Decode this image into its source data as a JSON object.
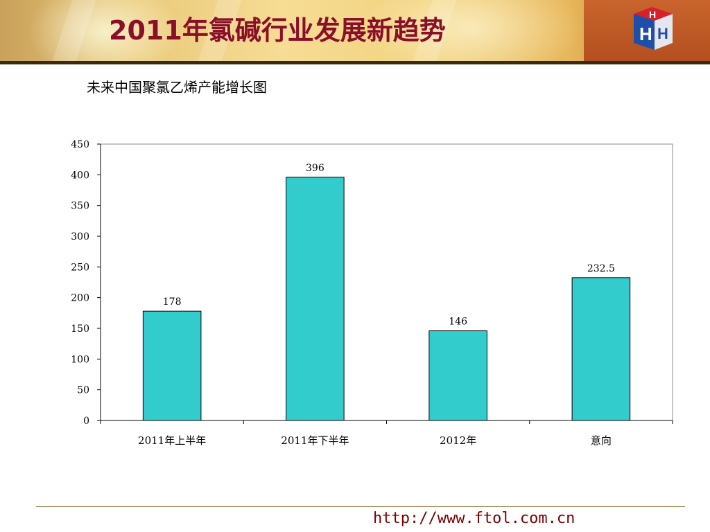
{
  "header": {
    "title": "2011年氯碱行业发展新趋势",
    "title_color": "#8a0f2a",
    "logo": "hh-cube-logo"
  },
  "chart_data": {
    "type": "bar",
    "title": "未来中国聚氯乙烯产能增长图",
    "categories": [
      "2011年上半年",
      "2011年下半年",
      "2012年",
      "意向"
    ],
    "values": [
      178,
      396,
      146,
      232.5
    ],
    "value_labels": [
      "178",
      "396",
      "146",
      "232.5"
    ],
    "ylim": [
      0,
      450
    ],
    "yticks": [
      0,
      50,
      100,
      150,
      200,
      250,
      300,
      350,
      400,
      450
    ],
    "xlabel": "",
    "ylabel": "",
    "grid": false,
    "bar_color": "#33cccc"
  },
  "footer": {
    "url": "http://www.ftol.com.cn"
  }
}
